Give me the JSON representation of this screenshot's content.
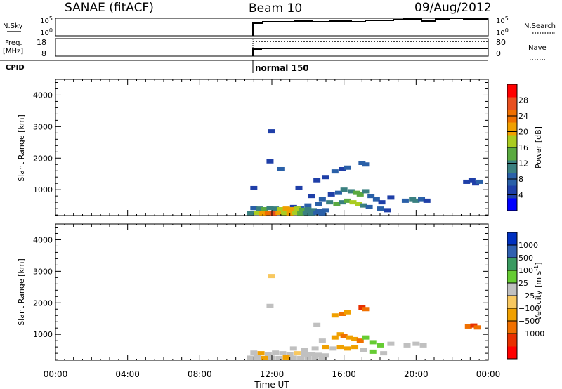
{
  "header": {
    "station": "SANAE (fitACF)",
    "beam": "Beam 10",
    "date": "09/Aug/2012"
  },
  "top_panels": {
    "nsky_label": "N.Sky",
    "nsky_ticks": [
      "10^5",
      "10^0"
    ],
    "nsearch_label": "N.Search",
    "nsearch_ticks": [
      "10^5",
      "10^0"
    ],
    "freq_label_1": "Freq.",
    "freq_label_2": "[MHz]",
    "freq_ticks": [
      "18",
      "8"
    ],
    "nave_label": "Nave",
    "nave_ticks": [
      "80",
      "0"
    ],
    "cpid_label": "CPID",
    "cpid_value": "normal 150"
  },
  "colors": {
    "power_scale": [
      "#0000ff",
      "#1f3fa8",
      "#2a60a8",
      "#3a8080",
      "#5aaa40",
      "#aacc20",
      "#f0a000",
      "#f07000",
      "#e85020",
      "#ff0000"
    ],
    "velocity_scale": [
      "#ff0000",
      "#e83000",
      "#f07000",
      "#f0a000",
      "#f8c860",
      "#c0c0c0",
      "#66cc33",
      "#3a9a60",
      "#3060b0",
      "#0030c0"
    ]
  },
  "chart_data": [
    {
      "type": "heatmap",
      "name": "power",
      "xlabel": "Time UT",
      "ylabel": "Slant Range [km]",
      "colorbar_label": "Power [dB]",
      "xlim_hours": [
        0,
        24
      ],
      "ylim_km": [
        180,
        4500
      ],
      "x_ticks": [
        "00:00",
        "04:00",
        "08:00",
        "12:00",
        "16:00",
        "20:00",
        "00:00"
      ],
      "y_ticks": [
        1000,
        2000,
        3000,
        4000
      ],
      "colorbar_ticks": [
        4,
        8,
        12,
        16,
        20,
        24,
        28
      ],
      "colorbar_range": [
        0,
        32
      ],
      "cells": [
        [
          12.0,
          2850,
          6
        ],
        [
          11.9,
          1900,
          4
        ],
        [
          11.0,
          1050,
          5
        ],
        [
          12.5,
          1650,
          7
        ],
        [
          15.5,
          1580,
          7
        ],
        [
          15.9,
          1650,
          6
        ],
        [
          16.2,
          1700,
          8
        ],
        [
          17.0,
          1850,
          7
        ],
        [
          17.2,
          1800,
          9
        ],
        [
          15.0,
          1400,
          5
        ],
        [
          14.5,
          1300,
          6
        ],
        [
          13.5,
          1050,
          5
        ],
        [
          14.2,
          800,
          6
        ],
        [
          14.8,
          700,
          7
        ],
        [
          15.3,
          850,
          6
        ],
        [
          15.7,
          900,
          8
        ],
        [
          16.0,
          1000,
          10
        ],
        [
          16.4,
          950,
          12
        ],
        [
          16.7,
          900,
          14
        ],
        [
          16.9,
          850,
          13
        ],
        [
          17.2,
          950,
          11
        ],
        [
          17.5,
          800,
          9
        ],
        [
          17.8,
          700,
          7
        ],
        [
          18.1,
          600,
          6
        ],
        [
          18.6,
          750,
          5
        ],
        [
          19.4,
          650,
          8
        ],
        [
          19.8,
          700,
          10
        ],
        [
          20.0,
          650,
          12
        ],
        [
          20.3,
          700,
          9
        ],
        [
          20.6,
          650,
          6
        ],
        [
          14.0,
          500,
          7
        ],
        [
          14.6,
          550,
          9
        ],
        [
          15.2,
          600,
          10
        ],
        [
          15.6,
          550,
          13
        ],
        [
          15.9,
          600,
          11
        ],
        [
          16.2,
          650,
          15
        ],
        [
          16.5,
          600,
          16
        ],
        [
          16.8,
          550,
          17
        ],
        [
          17.1,
          500,
          12
        ],
        [
          17.4,
          450,
          9
        ],
        [
          18.0,
          400,
          8
        ],
        [
          18.4,
          350,
          6
        ],
        [
          13.2,
          450,
          6
        ],
        [
          13.6,
          420,
          7
        ],
        [
          11.0,
          420,
          8
        ],
        [
          11.3,
          400,
          10
        ],
        [
          11.6,
          380,
          14
        ],
        [
          11.9,
          420,
          12
        ],
        [
          12.2,
          400,
          11
        ],
        [
          12.5,
          380,
          16
        ],
        [
          12.8,
          400,
          20
        ],
        [
          13.1,
          380,
          22
        ],
        [
          13.4,
          400,
          18
        ],
        [
          13.7,
          360,
          15
        ],
        [
          14.0,
          380,
          12
        ],
        [
          14.3,
          350,
          10
        ],
        [
          14.6,
          330,
          9
        ],
        [
          15.0,
          350,
          8
        ],
        [
          10.8,
          260,
          12
        ],
        [
          11.2,
          270,
          16
        ],
        [
          11.5,
          250,
          20
        ],
        [
          11.8,
          260,
          24
        ],
        [
          12.1,
          250,
          26
        ],
        [
          12.4,
          270,
          22
        ],
        [
          12.7,
          260,
          18
        ],
        [
          13.0,
          250,
          20
        ],
        [
          13.3,
          270,
          16
        ],
        [
          13.6,
          250,
          14
        ],
        [
          13.9,
          260,
          12
        ],
        [
          14.2,
          250,
          10
        ],
        [
          14.5,
          270,
          9
        ],
        [
          14.8,
          250,
          8
        ],
        [
          22.8,
          1250,
          5
        ],
        [
          23.1,
          1300,
          6
        ],
        [
          23.3,
          1200,
          4
        ],
        [
          23.5,
          1250,
          7
        ]
      ]
    },
    {
      "type": "heatmap",
      "name": "velocity",
      "xlabel": "Time UT",
      "ylabel": "Slant Range [km]",
      "colorbar_label": "Velocity [m s^-1]",
      "xlim_hours": [
        0,
        24
      ],
      "ylim_km": [
        180,
        4500
      ],
      "x_ticks": [
        "00:00",
        "04:00",
        "08:00",
        "12:00",
        "16:00",
        "20:00",
        "00:00"
      ],
      "y_ticks": [
        1000,
        2000,
        3000,
        4000
      ],
      "colorbar_ticks": [
        "1000",
        "500",
        "100",
        "25",
        "-25",
        "-100",
        "-500",
        "-1000"
      ],
      "cells": [
        [
          12.0,
          2850,
          4
        ],
        [
          11.9,
          1900,
          5
        ],
        [
          15.5,
          1600,
          3
        ],
        [
          15.9,
          1650,
          2
        ],
        [
          16.2,
          1700,
          3
        ],
        [
          17.0,
          1850,
          1
        ],
        [
          17.2,
          1800,
          2
        ],
        [
          14.5,
          1300,
          5
        ],
        [
          15.5,
          900,
          3
        ],
        [
          15.8,
          1000,
          3
        ],
        [
          16.0,
          950,
          2
        ],
        [
          16.3,
          900,
          3
        ],
        [
          16.6,
          850,
          3
        ],
        [
          16.9,
          800,
          2
        ],
        [
          17.2,
          900,
          6
        ],
        [
          17.6,
          750,
          6
        ],
        [
          18.0,
          650,
          6
        ],
        [
          18.6,
          700,
          5
        ],
        [
          19.5,
          650,
          5
        ],
        [
          20.0,
          700,
          5
        ],
        [
          20.4,
          650,
          5
        ],
        [
          14.8,
          800,
          5
        ],
        [
          13.2,
          550,
          5
        ],
        [
          13.8,
          500,
          5
        ],
        [
          14.4,
          550,
          5
        ],
        [
          15.0,
          600,
          3
        ],
        [
          15.4,
          550,
          5
        ],
        [
          15.8,
          600,
          3
        ],
        [
          16.2,
          550,
          3
        ],
        [
          16.6,
          600,
          3
        ],
        [
          17.1,
          500,
          5
        ],
        [
          17.6,
          450,
          6
        ],
        [
          18.2,
          400,
          5
        ],
        [
          11.0,
          420,
          5
        ],
        [
          11.4,
          400,
          3
        ],
        [
          11.8,
          380,
          5
        ],
        [
          12.2,
          420,
          5
        ],
        [
          12.6,
          400,
          5
        ],
        [
          13.0,
          380,
          5
        ],
        [
          13.4,
          400,
          4
        ],
        [
          13.8,
          360,
          5
        ],
        [
          14.2,
          380,
          5
        ],
        [
          14.6,
          350,
          5
        ],
        [
          15.0,
          330,
          5
        ],
        [
          10.8,
          260,
          5
        ],
        [
          11.2,
          270,
          5
        ],
        [
          11.6,
          250,
          3
        ],
        [
          12.0,
          260,
          5
        ],
        [
          12.4,
          250,
          5
        ],
        [
          12.8,
          270,
          3
        ],
        [
          13.2,
          260,
          5
        ],
        [
          13.6,
          250,
          5
        ],
        [
          14.0,
          270,
          5
        ],
        [
          14.4,
          250,
          5
        ],
        [
          14.8,
          260,
          5
        ],
        [
          22.9,
          1250,
          2
        ],
        [
          23.2,
          1280,
          1
        ],
        [
          23.4,
          1220,
          2
        ]
      ]
    }
  ]
}
